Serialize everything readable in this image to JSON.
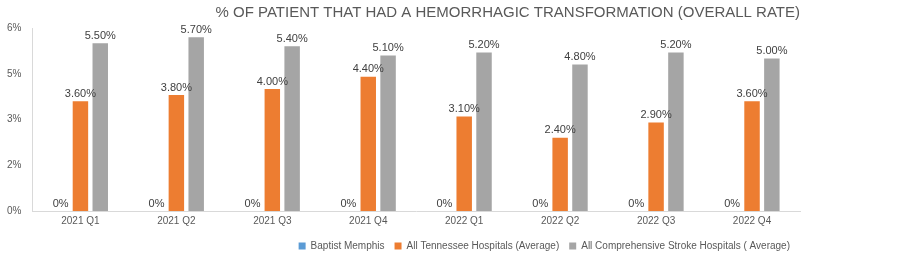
{
  "chart_data": {
    "type": "bar",
    "title": "% OF PATIENT THAT HAD A HEMORRHAGIC TRANSFORMATION (OVERALL RATE)",
    "categories": [
      "2021 Q1",
      "2021 Q2",
      "2021 Q3",
      "2021 Q4",
      "2022 Q1",
      "2022 Q2",
      "2022 Q3",
      "2022 Q4"
    ],
    "series": [
      {
        "name": "Baptist Memphis",
        "color": "#5b9bd5",
        "values": [
          0,
          0,
          0,
          0,
          0,
          0,
          0,
          0
        ],
        "value_labels": [
          "0%",
          "0%",
          "0%",
          "0%",
          "0%",
          "0%",
          "0%",
          "0%"
        ]
      },
      {
        "name": "All Tennessee Hospitals (Average)",
        "color": "#ed7d31",
        "values": [
          3.6,
          3.8,
          4.0,
          4.4,
          3.1,
          2.4,
          2.9,
          3.6
        ],
        "value_labels": [
          "3.60%",
          "3.80%",
          "4.00%",
          "4.40%",
          "3.10%",
          "2.40%",
          "2.90%",
          "3.60%"
        ]
      },
      {
        "name": "All Comprehensive Stroke Hospitals ( Average)",
        "color": "#a5a5a5",
        "values": [
          5.5,
          5.7,
          5.4,
          5.1,
          5.2,
          4.8,
          5.2,
          5.0
        ],
        "value_labels": [
          "5.50%",
          "5.70%",
          "5.40%",
          "5.10%",
          "5.20%",
          "4.80%",
          "5.20%",
          "5.00%"
        ]
      }
    ],
    "ylim": [
      0,
      6
    ],
    "yticks": [
      {
        "value": 0,
        "label": "0%"
      },
      {
        "value": 1.5,
        "label": "2%"
      },
      {
        "value": 3,
        "label": "3%"
      },
      {
        "value": 4.5,
        "label": "5%"
      },
      {
        "value": 6,
        "label": "6%"
      }
    ],
    "grid": false,
    "legend": "bottom",
    "data_labels": true
  }
}
